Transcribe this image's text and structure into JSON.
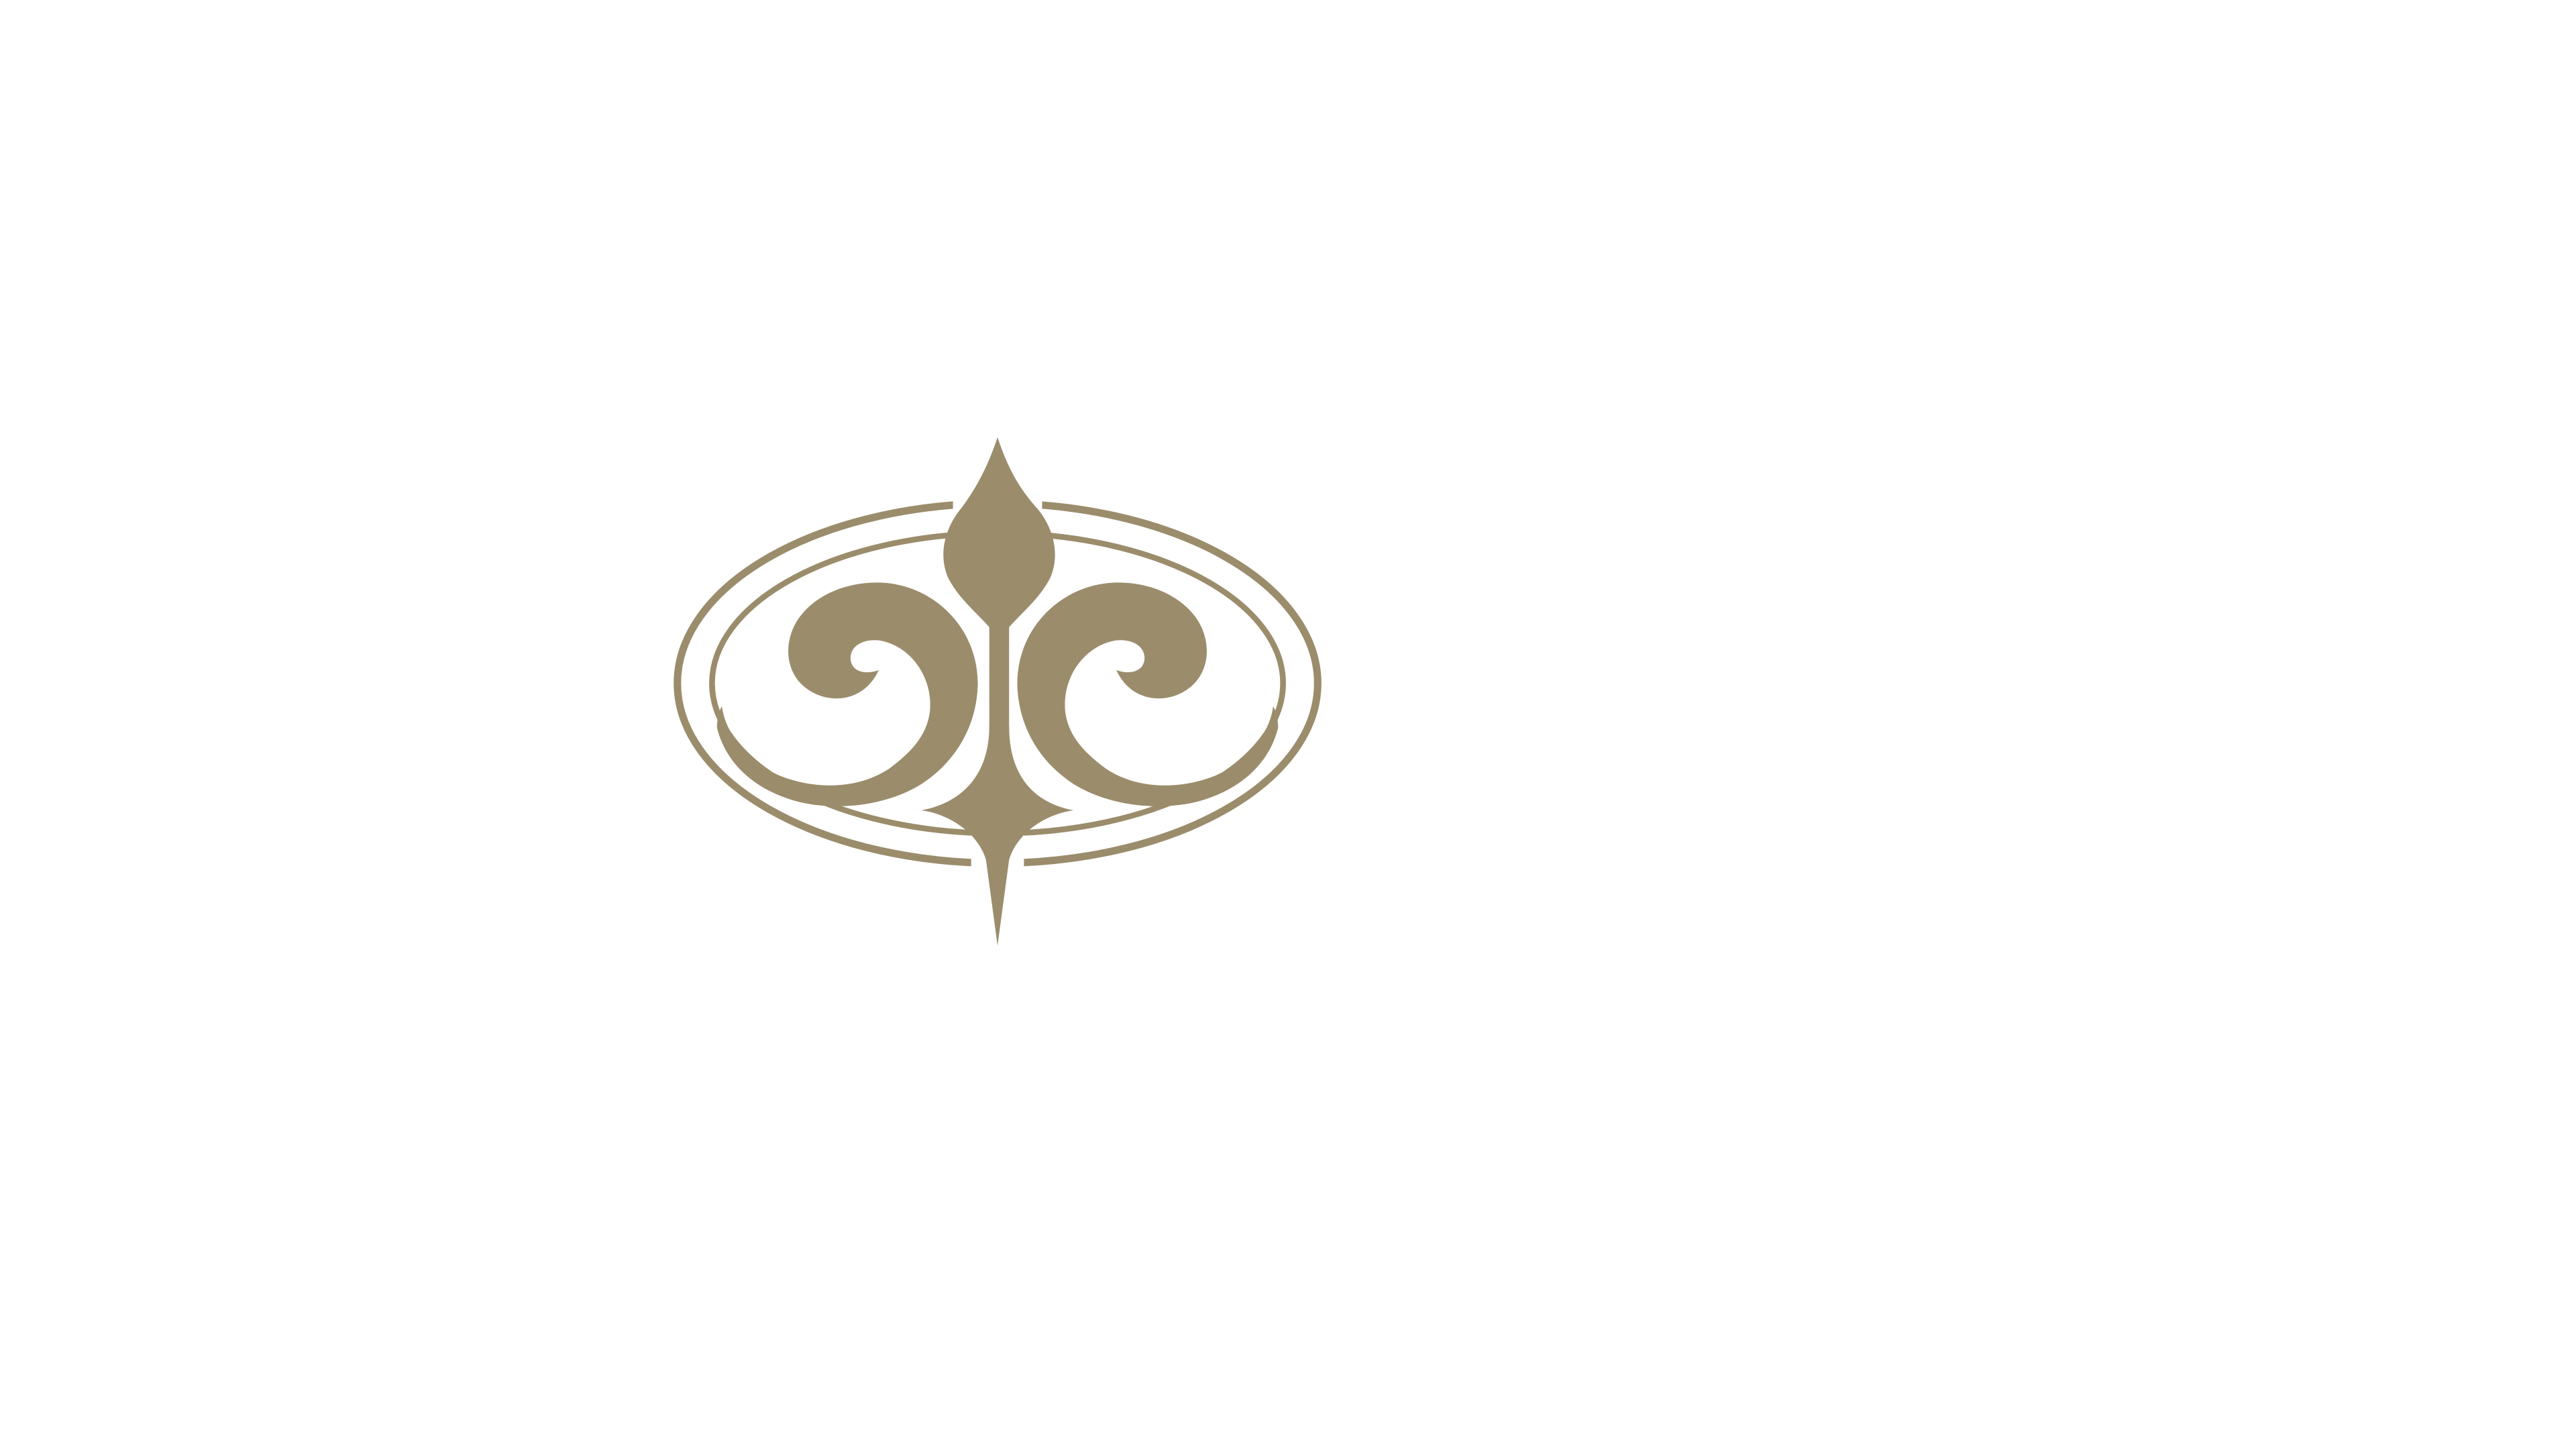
{
  "background_color": "#ffffff",
  "logo": {
    "icon": "ornamental-oval-scroll-emblem-icon",
    "color": "#9b8d6c"
  }
}
